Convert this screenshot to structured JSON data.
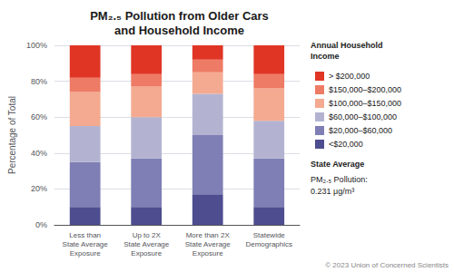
{
  "chart_data": {
    "type": "bar",
    "stacked": true,
    "title": "PM₂.₅ Pollution from Older Cars\nand Household Income",
    "ylabel": "Percentage of Total",
    "categories": [
      "Less than\nState Average\nExposure",
      "Up to 2X\nState Average\nExposure",
      "More than 2X\nState Average\nExposure",
      "Statewide\nDemographics"
    ],
    "series": [
      {
        "name": "<$20,000",
        "color": "#4d4d8f",
        "values": [
          10,
          10,
          17,
          10
        ]
      },
      {
        "name": "$20,000–$60,000",
        "color": "#7f7fb5",
        "values": [
          25,
          27,
          33,
          27
        ]
      },
      {
        "name": "$60,000–$100,000",
        "color": "#b3b3d1",
        "values": [
          20,
          23,
          23,
          21
        ]
      },
      {
        "name": "$100,000–$150,000",
        "color": "#f4aa90",
        "values": [
          19,
          17,
          12,
          18
        ]
      },
      {
        "name": "$150,000–$200,000",
        "color": "#ee7b65",
        "values": [
          8,
          7,
          7,
          8
        ]
      },
      {
        "name": "> $200,000",
        "color": "#e03525",
        "values": [
          18,
          16,
          8,
          16
        ]
      }
    ],
    "ylim": [
      0,
      100
    ],
    "yticks": [
      {
        "value": 0,
        "label": "0%"
      },
      {
        "value": 20,
        "label": "20%"
      },
      {
        "value": 40,
        "label": "40%"
      },
      {
        "value": 60,
        "label": "60%"
      },
      {
        "value": 80,
        "label": "80%"
      },
      {
        "value": 100,
        "label": "100%"
      }
    ],
    "grid": true,
    "legend": "right",
    "legend_title": "Annual Household\nIncome",
    "note_title": "State Average",
    "note": "PM₂.₅ Pollution:\n0.231 μg/m³",
    "copyright": "© 2023 Union of Concerned Scientists"
  }
}
